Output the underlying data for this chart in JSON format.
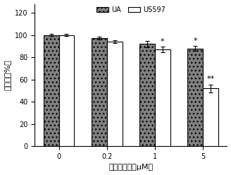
{
  "categories": [
    "0",
    "0.2",
    "1",
    "5"
  ],
  "ua_values": [
    100,
    97,
    92,
    88
  ],
  "us597_values": [
    100,
    94,
    87,
    52
  ],
  "ua_errors": [
    0.8,
    1.2,
    3.0,
    2.0
  ],
  "us597_errors": [
    1.0,
    1.5,
    2.5,
    3.5
  ],
  "ua_color": "#808080",
  "us597_color": "#ffffff",
  "ua_hatch": "...",
  "us597_hatch": "",
  "bar_edgecolor": "#000000",
  "ylabel": "粘附率（%）",
  "xlabel": "化合物浓度（μM）",
  "ylim": [
    0,
    128
  ],
  "yticks": [
    0,
    20,
    40,
    60,
    80,
    100,
    120
  ],
  "legend_labels": [
    "UA",
    "US597"
  ],
  "bar_width": 0.32,
  "capsize": 2,
  "fontsize_label": 8,
  "fontsize_tick": 7,
  "fontsize_legend": 7,
  "fontsize_annot": 8
}
